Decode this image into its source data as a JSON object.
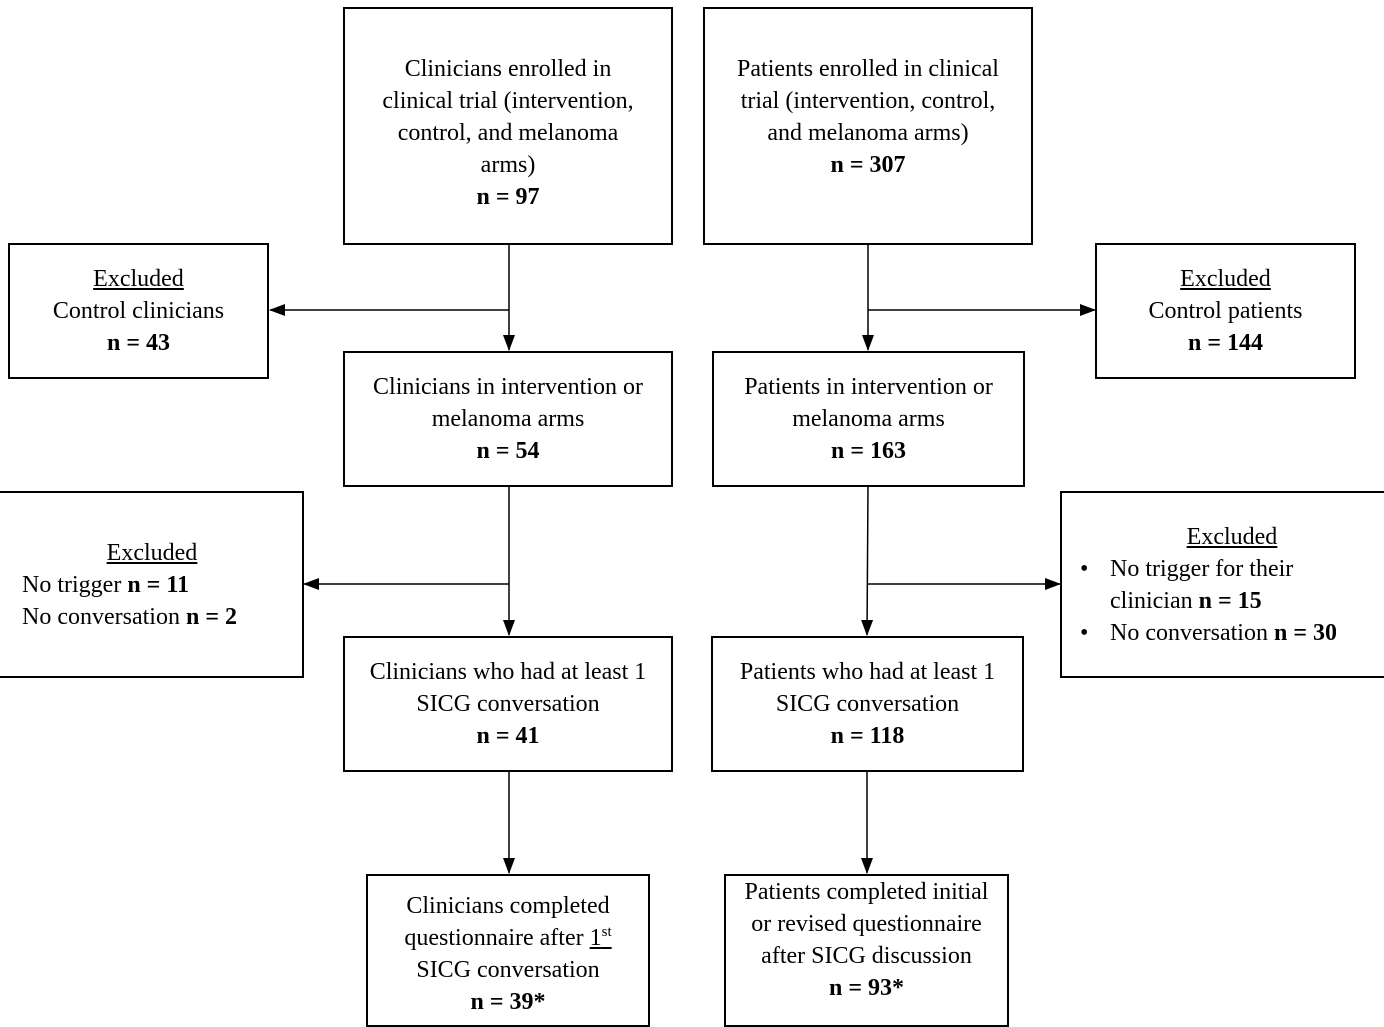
{
  "clinicians": {
    "enrolled": {
      "text": "Clinicians enrolled in clinical trial (intervention, control, and melanoma arms)",
      "n": "n = 97"
    },
    "excluded_control": {
      "title": "Excluded",
      "text": "Control clinicians",
      "n": "n = 43"
    },
    "intervention": {
      "text": "Clinicians in intervention or melanoma arms",
      "n": "n = 54"
    },
    "excluded_trigger": {
      "title": "Excluded",
      "items": [
        {
          "label": "No trigger ",
          "n": "n = 11"
        },
        {
          "label": "No conversation ",
          "n": "n = 2"
        }
      ]
    },
    "conversation": {
      "text": "Clinicians who had at least 1 SICG conversation",
      "n": "n = 41"
    },
    "completed": {
      "text_before": "Clinicians completed questionnaire after ",
      "ordinal": "1",
      "ordinal_suffix": "st",
      "text_after": " SICG conversation",
      "n": "n = 39*"
    }
  },
  "patients": {
    "enrolled": {
      "text": "Patients enrolled in clinical trial (intervention, control, and melanoma arms)",
      "n": "n = 307"
    },
    "excluded_control": {
      "title": "Excluded",
      "text": "Control patients",
      "n": "n = 144"
    },
    "intervention": {
      "text": "Patients in intervention or melanoma arms",
      "n": "n = 163"
    },
    "excluded_trigger": {
      "title": "Excluded",
      "items": [
        {
          "label": "No trigger for their clinician ",
          "n": "n = 15"
        },
        {
          "label": "No conversation ",
          "n": "n = 30"
        }
      ]
    },
    "conversation": {
      "text": "Patients who had at least 1 SICG conversation",
      "n": "n = 118"
    },
    "completed": {
      "text": "Patients completed initial or revised questionnaire after SICG discussion",
      "n": "n = 93*"
    }
  }
}
